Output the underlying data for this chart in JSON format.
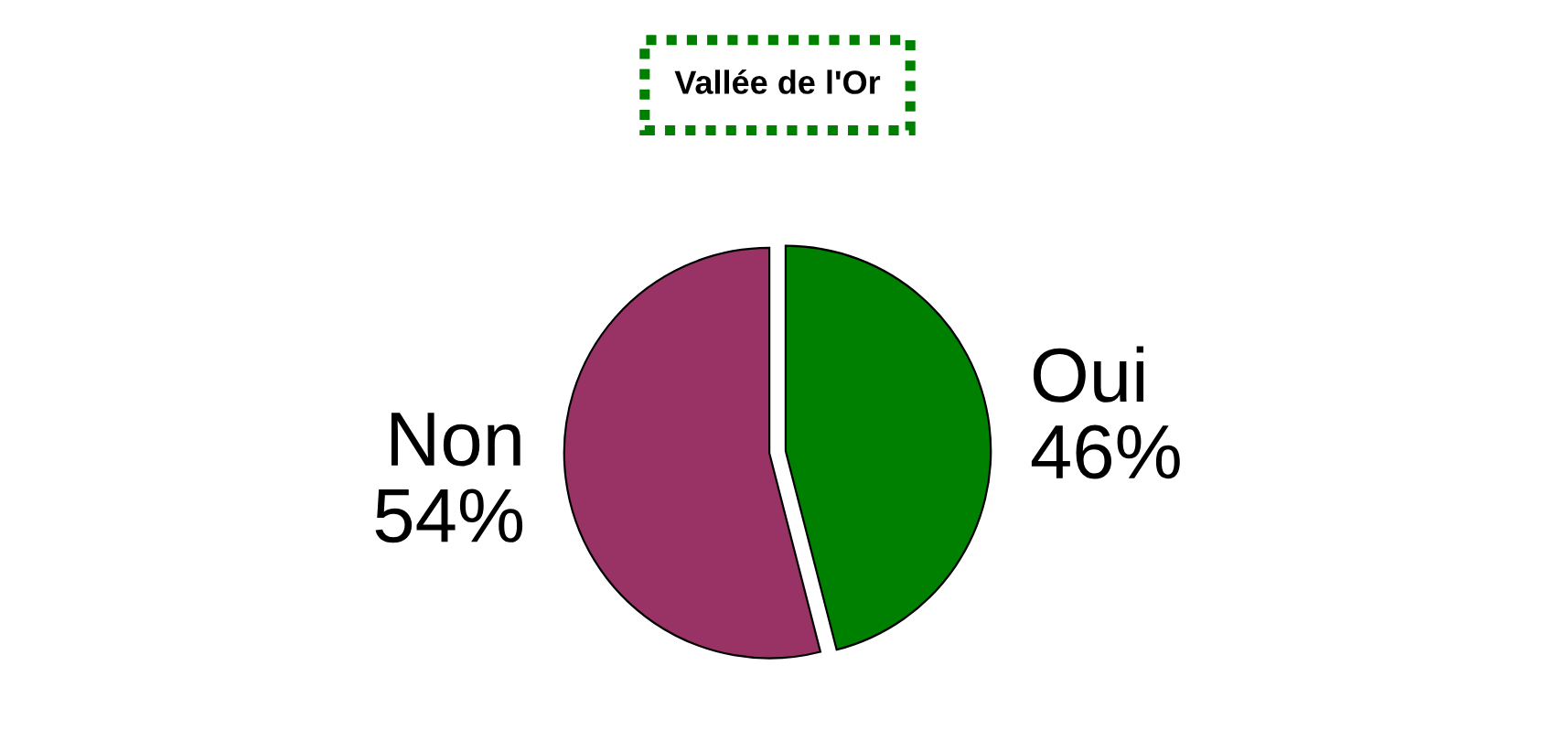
{
  "chart_data": {
    "type": "pie",
    "title": "Vallée de l'Or",
    "categories": [
      "Oui",
      "Non"
    ],
    "values": [
      46,
      54
    ],
    "value_labels": [
      "46%",
      "54%"
    ],
    "colors": [
      "#008000",
      "#993366"
    ],
    "legend": false
  }
}
